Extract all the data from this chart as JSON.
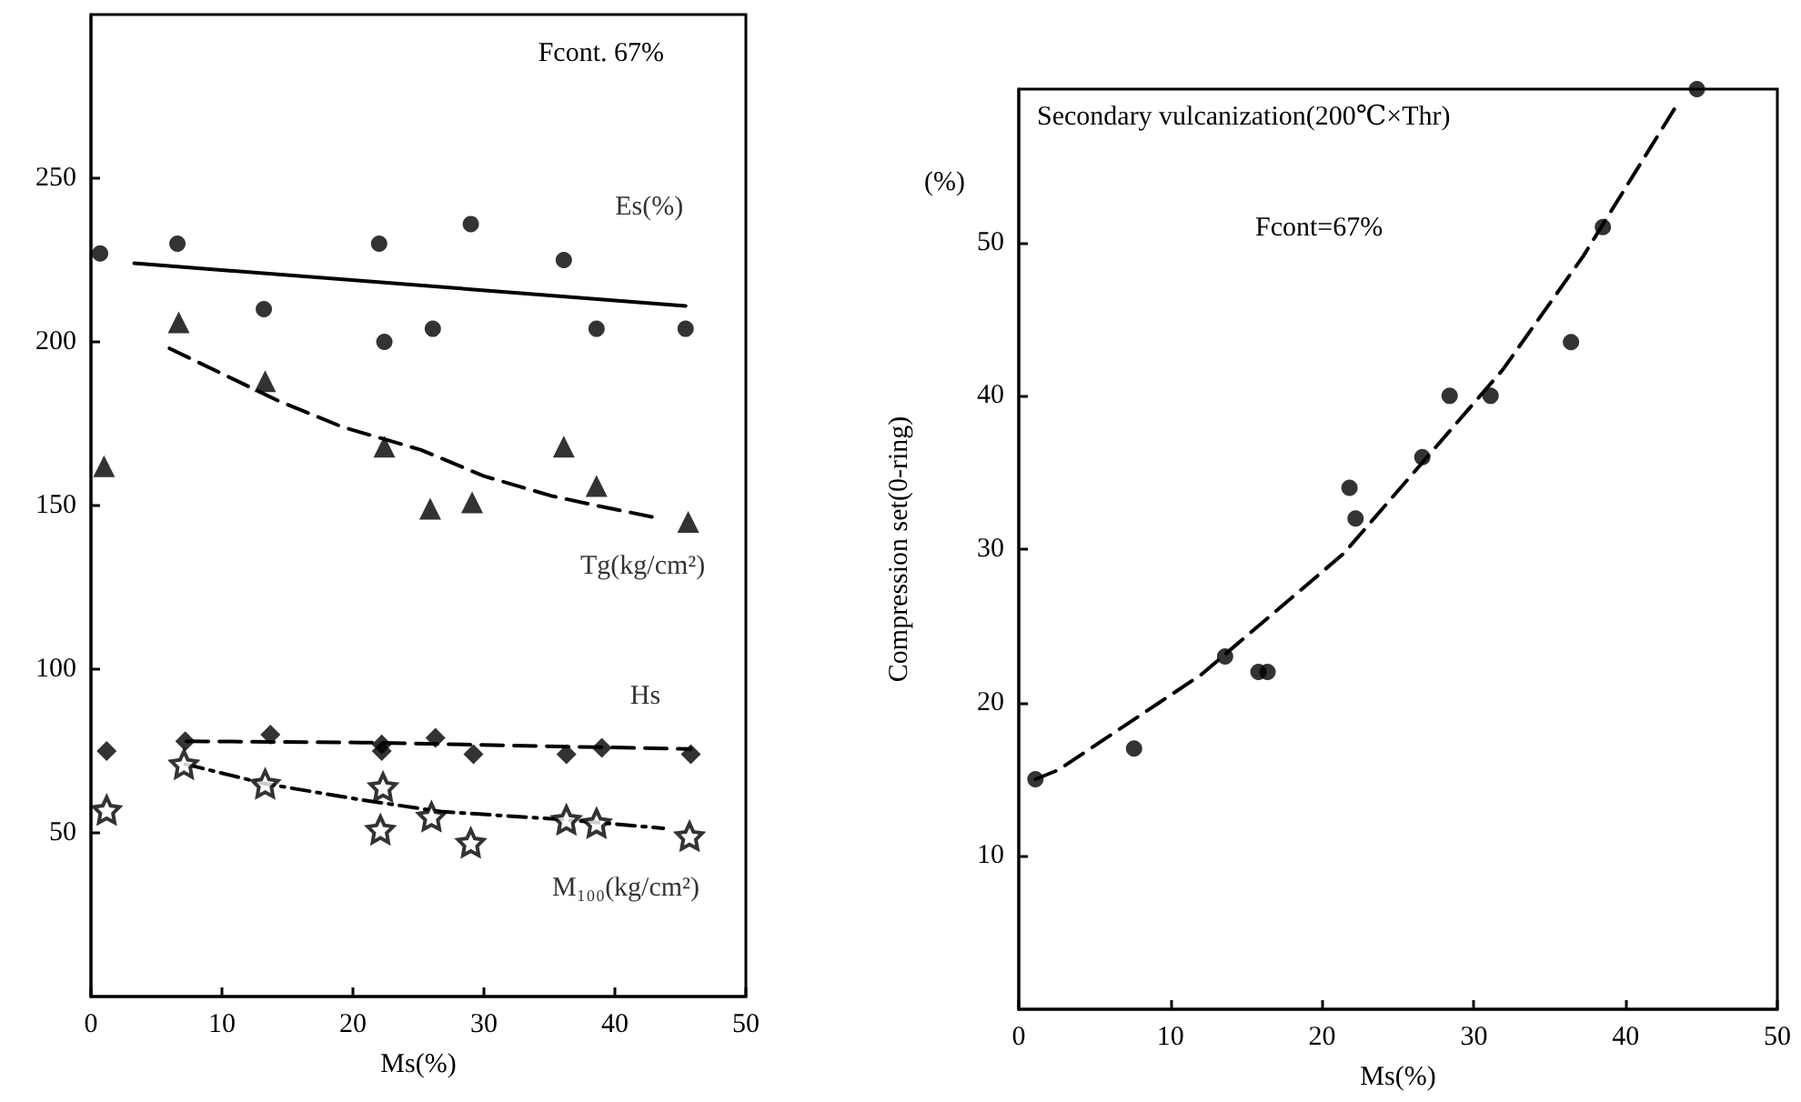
{
  "chart_data": [
    {
      "type": "scatter",
      "xlabel": "Ms(%)",
      "xlim": [
        0,
        50
      ],
      "xticks": [
        0,
        10,
        20,
        30,
        40,
        50
      ],
      "ylim": [
        0,
        300
      ],
      "yticks": [
        50,
        100,
        150,
        200,
        250
      ],
      "grid": false,
      "legend": false,
      "annotations": [
        "Fcont. 67%"
      ],
      "series": [
        {
          "name": "Es(%)",
          "color": "#000000",
          "marker": "circle",
          "x": [
            0.7,
            6.6,
            13.2,
            22,
            22.4,
            26.1,
            29,
            36.1,
            38.6,
            45.4
          ],
          "values": [
            227,
            230,
            210,
            230,
            200,
            204,
            236,
            225,
            204,
            204
          ]
        },
        {
          "name": "Tg(kg/cm²)",
          "color": "#000000",
          "marker": "triangle",
          "x": [
            1,
            6.7,
            13.3,
            22.4,
            25.9,
            29.1,
            36.1,
            38.6,
            45.6
          ],
          "values": [
            162,
            206,
            188,
            168,
            149,
            151,
            168,
            156,
            145
          ]
        },
        {
          "name": "Hs",
          "color": "#000000",
          "marker": "diamond",
          "x": [
            1.2,
            7.2,
            13.7,
            22.2,
            22.2,
            26.3,
            29.2,
            36.3,
            39,
            45.8
          ],
          "values": [
            75,
            78,
            80,
            77,
            75,
            79,
            74,
            74,
            76,
            74
          ]
        },
        {
          "name": "M₁₀₀(kg/cm²)",
          "color": "#000000",
          "marker": "star",
          "x": [
            1.2,
            7.1,
            13.3,
            22.3,
            22.1,
            26,
            29,
            36.3,
            38.6,
            45.7
          ],
          "values": [
            57,
            71,
            65,
            64,
            51,
            55,
            47,
            54,
            53,
            49
          ]
        },
        {
          "type": "line",
          "color": "#000000",
          "marker": "none",
          "line_style": "solid",
          "x": [
            3.3,
            45.4
          ],
          "values": [
            224,
            211
          ]
        },
        {
          "type": "line",
          "color": "#000000",
          "marker": "none",
          "line_style": "dashed",
          "x": [
            6,
            14.3,
            19.2,
            25.2,
            30,
            35.1,
            38.6,
            43.5
          ],
          "values": [
            198,
            182,
            174,
            167,
            159,
            153,
            150,
            146
          ]
        },
        {
          "type": "line",
          "color": "#000000",
          "marker": "none",
          "line_style": "dashed",
          "x": [
            7.3,
            20.8,
            45.8
          ],
          "values": [
            78,
            77.6,
            75.6
          ]
        },
        {
          "type": "line",
          "color": "#000000",
          "marker": "none",
          "line_style": "dotted",
          "x": [
            7.2,
            13.3,
            20.8,
            26.7,
            36.3,
            43.7
          ],
          "values": [
            71,
            65,
            60,
            56.5,
            54,
            51.4
          ]
        }
      ]
    },
    {
      "type": "scatter",
      "xlabel": "Ms(%)",
      "ylabel": "Compression set(0-ring)",
      "xlim": [
        0,
        50
      ],
      "xticks": [
        0,
        10,
        20,
        30,
        40,
        50
      ],
      "ylim": [
        0,
        60
      ],
      "yticks": [
        10,
        20,
        30,
        40,
        50
      ],
      "grid": false,
      "legend": false,
      "annotations": [
        "Secondary vulcanization(200℃×Thr)",
        "Fcont=67%",
        "(%)"
      ],
      "series": [
        {
          "color": "#000000",
          "marker": "circle",
          "x": [
            1.1,
            7.6,
            13.6,
            15.8,
            16.4,
            21.8,
            22.2,
            26.6,
            28.4,
            31.1,
            36.4,
            38.5,
            44.7
          ],
          "values": [
            15,
            17,
            23,
            22,
            22,
            34,
            32,
            36,
            40,
            40,
            43.5,
            51,
            60
          ]
        },
        {
          "type": "line",
          "color": "#000000",
          "marker": "none",
          "line_style": "dashed",
          "x": [
            1.1,
            2.6,
            12,
            21.4,
            31.9,
            37.2,
            43.4
          ],
          "values": [
            15,
            15.6,
            21.8,
            29.7,
            41.7,
            49.1,
            59
          ]
        }
      ]
    }
  ]
}
